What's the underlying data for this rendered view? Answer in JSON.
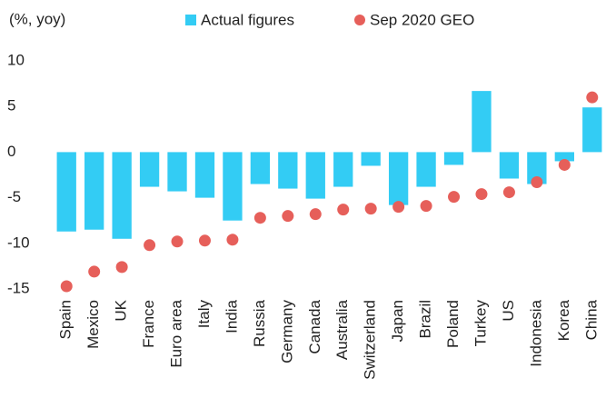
{
  "chart_data": {
    "type": "bar",
    "y_label": "(%, yoy)",
    "categories": [
      "Spain",
      "Mexico",
      "UK",
      "France",
      "Euro area",
      "Italy",
      "India",
      "Russia",
      "Germany",
      "Canada",
      "Australia",
      "Switzerland",
      "Japan",
      "Brazil",
      "Poland",
      "Turkey",
      "US",
      "Indonesia",
      "Korea",
      "China"
    ],
    "series": [
      {
        "name": "Actual figures",
        "type": "bar",
        "color": "#33ccf4",
        "values": [
          -8.7,
          -8.5,
          -9.5,
          -3.8,
          -4.3,
          -5.0,
          -7.5,
          -3.5,
          -4.0,
          -5.1,
          -3.8,
          -1.5,
          -5.8,
          -3.8,
          -1.4,
          6.7,
          -2.9,
          -3.5,
          -1.0,
          4.9
        ]
      },
      {
        "name": "Sep 2020 GEO",
        "type": "scatter",
        "color": "#e65f5a",
        "values": [
          -14.7,
          -13.1,
          -12.6,
          -10.2,
          -9.8,
          -9.7,
          -9.6,
          -7.2,
          -7.0,
          -6.8,
          -6.3,
          -6.2,
          -6.0,
          -5.9,
          -4.9,
          -4.6,
          -4.4,
          -3.3,
          -1.4,
          6.0
        ]
      }
    ],
    "ylim": [
      -15,
      10
    ],
    "yticks": [
      10,
      5,
      0,
      -5,
      -10,
      -15
    ],
    "grid": false
  }
}
